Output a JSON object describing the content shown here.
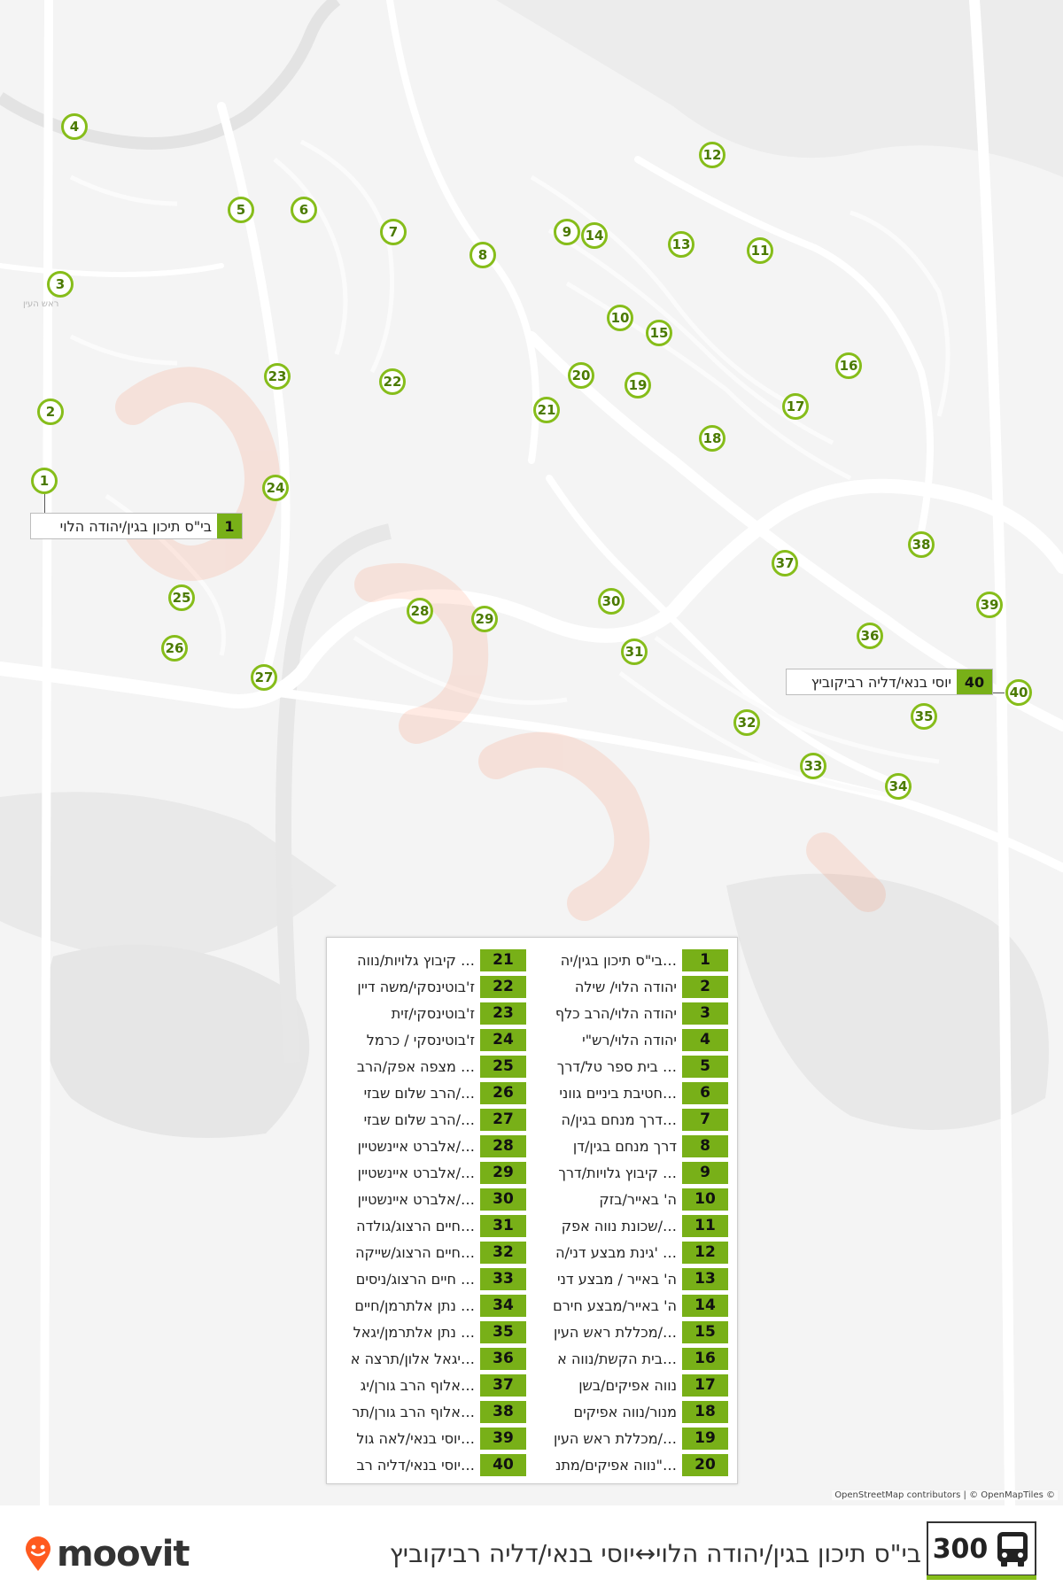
{
  "route": {
    "number": "300",
    "title": "בי\"ס תיכון בגין/יהודה הלוי↔יוסי בנאי/דליה רביקוביץ",
    "accent_color": "#86bd1a",
    "icon": "bus-icon"
  },
  "brand": {
    "name": "moovit",
    "icon": "moovit-pin-icon",
    "color": "#ff5a1f"
  },
  "map": {
    "attribution": "OpenStreetMap contributors | © OpenMapTiles ©",
    "faint_label": "ראש העין"
  },
  "callouts": {
    "start": {
      "number": "1",
      "name": "בי\"ס תיכון בגין/יהודה הלוי"
    },
    "end": {
      "number": "40",
      "name": "יוסי בנאי/דליה רביקוביץ"
    }
  },
  "stops": [
    {
      "n": "1",
      "name": "בי\"ס תיכון בגין/יה…"
    },
    {
      "n": "2",
      "name": "יהודה הלוי/ שילה"
    },
    {
      "n": "3",
      "name": "יהודה הלוי/הרב כלף"
    },
    {
      "n": "4",
      "name": "יהודה הלוי/רש\"י"
    },
    {
      "n": "5",
      "name": "בית ספר טל/דרך …"
    },
    {
      "n": "6",
      "name": "חטיבת ביניים גווני…"
    },
    {
      "n": "7",
      "name": "דרך מנחם בגין/ה…"
    },
    {
      "n": "8",
      "name": "דרך מנחם בגין/דן"
    },
    {
      "n": "9",
      "name": "קיבוץ גלויות/דרך …"
    },
    {
      "n": "10",
      "name": "ה' באייר/בזק"
    },
    {
      "n": "11",
      "name": "שכונת נווה אפק/…"
    },
    {
      "n": "12",
      "name": "גינת מבצע דני/ה' …"
    },
    {
      "n": "13",
      "name": "ה' באייר / מבצע דני"
    },
    {
      "n": "14",
      "name": "ה' באייר/מבצע חירם"
    },
    {
      "n": "15",
      "name": "מכללת ראש העין/…"
    },
    {
      "n": "16",
      "name": "בית הקשת/נווה א…"
    },
    {
      "n": "17",
      "name": "נווה אפיקים/בשן"
    },
    {
      "n": "18",
      "name": "מנור/נווה אפיקים"
    },
    {
      "n": "19",
      "name": "מכללת ראש העין/…"
    },
    {
      "n": "20",
      "name": "נווה אפיקים/מתנ\"…"
    },
    {
      "n": "21",
      "name": "קיבוץ גלויות/נווה …"
    },
    {
      "n": "22",
      "name": "ז'בוטינסקי/משה דיין"
    },
    {
      "n": "23",
      "name": "ז'בוטינסקי/זית"
    },
    {
      "n": "24",
      "name": "ז'בוטינסקי / כרמל"
    },
    {
      "n": "25",
      "name": "מצפה אפק/הרב …"
    },
    {
      "n": "26",
      "name": "הרב שלום שבזי/…"
    },
    {
      "n": "27",
      "name": "הרב שלום שבזי/…"
    },
    {
      "n": "28",
      "name": "אלברט איינשטיין/…"
    },
    {
      "n": "29",
      "name": "אלברט איינשטיין/…"
    },
    {
      "n": "30",
      "name": "אלברט איינשטיין/…"
    },
    {
      "n": "31",
      "name": "חיים הרצוג/גולדה…"
    },
    {
      "n": "32",
      "name": "חיים הרצוג/שייקה…"
    },
    {
      "n": "33",
      "name": "חיים הרצוג/ניסים …"
    },
    {
      "n": "34",
      "name": "נתן אלתרמן/חיים …"
    },
    {
      "n": "35",
      "name": "נתן אלתרמן/יגאל …"
    },
    {
      "n": "36",
      "name": "יגאל אלון/תרצה א…"
    },
    {
      "n": "37",
      "name": "אלוף הרב גורן/יג…"
    },
    {
      "n": "38",
      "name": "אלוף הרב גורן/תר…"
    },
    {
      "n": "39",
      "name": "יוסי בנאי/לאה גול…"
    },
    {
      "n": "40",
      "name": "יוסי בנאי/דליה רב…"
    }
  ]
}
